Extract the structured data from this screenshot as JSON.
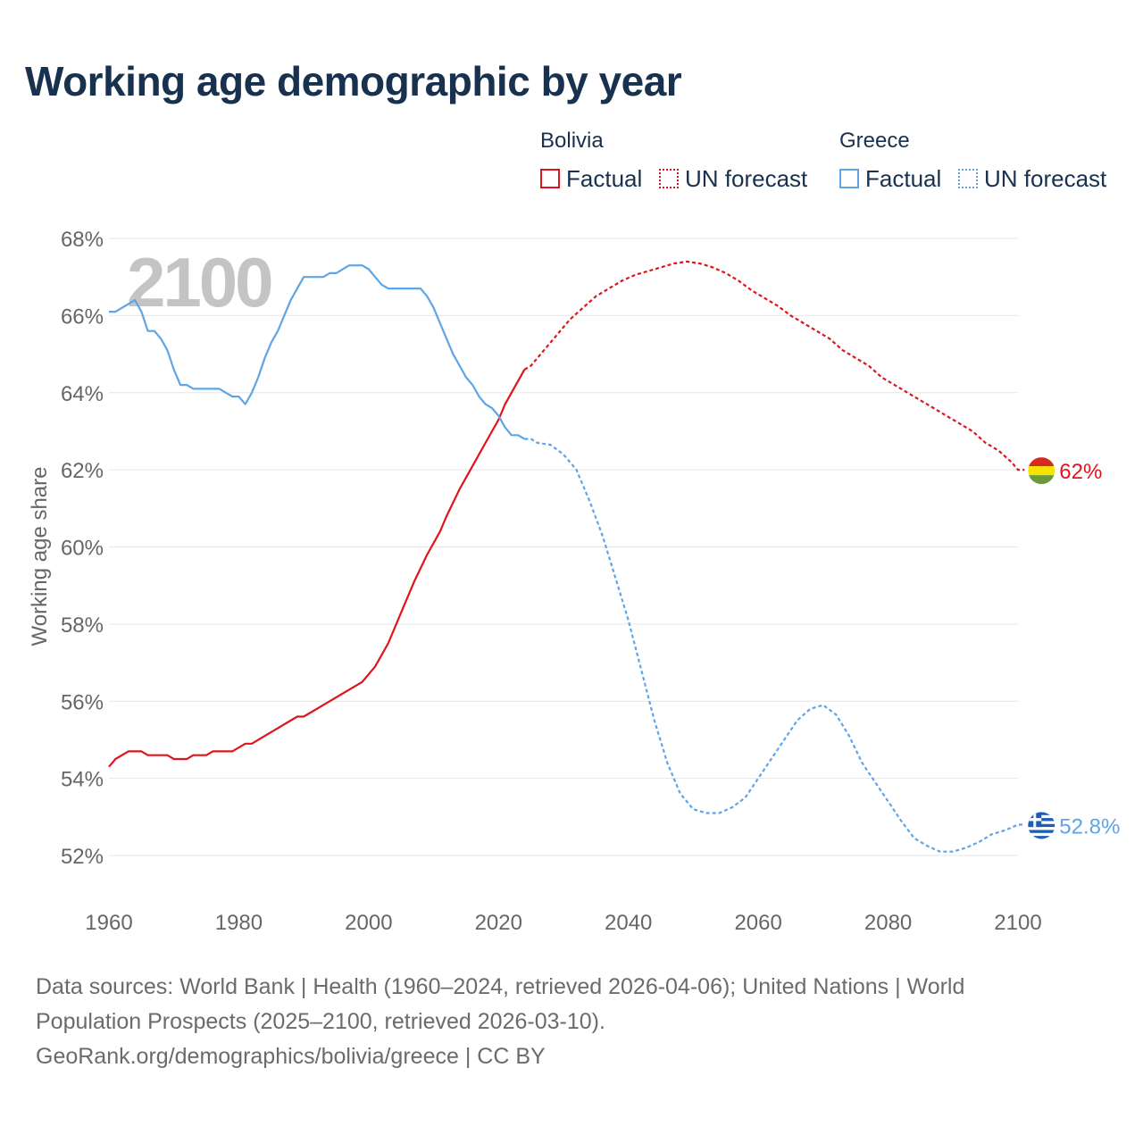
{
  "title": "Working age demographic by year",
  "legend": {
    "groups": [
      {
        "country": "Bolivia",
        "factual_label": "Factual",
        "forecast_label": "UN forecast",
        "color": "#e0141c"
      },
      {
        "country": "Greece",
        "factual_label": "Factual",
        "forecast_label": "UN forecast",
        "color": "#5ea5e6"
      }
    ]
  },
  "sources": {
    "line1": "Data sources: World Bank | Health (1960–2024, retrieved 2026-04-06); United Nations | World",
    "line2": "Population Prospects (2025–2100, retrieved 2026-03-10).",
    "line3": "GeoRank.org/demographics/bolivia/greece | CC BY"
  },
  "chart_data": {
    "type": "line",
    "title": "Working age demographic by year",
    "xlabel": "",
    "ylabel": "Working age share",
    "xlim": [
      1960,
      2100
    ],
    "ylim": [
      51,
      68
    ],
    "x_ticks": [
      1960,
      1980,
      2000,
      2020,
      2040,
      2060,
      2080,
      2100
    ],
    "y_ticks": [
      52,
      54,
      56,
      58,
      60,
      62,
      64,
      66,
      68
    ],
    "y_tick_labels": [
      "52%",
      "54%",
      "56%",
      "58%",
      "60%",
      "62%",
      "64%",
      "66%",
      "68%"
    ],
    "watermark_year": "2100",
    "factual_end_year": 2024,
    "series": [
      {
        "name": "Bolivia",
        "color": "#e0141c",
        "end_label": "62%",
        "points": [
          [
            1960,
            54.3
          ],
          [
            1961,
            54.5
          ],
          [
            1963,
            54.7
          ],
          [
            1965,
            54.7
          ],
          [
            1966,
            54.6
          ],
          [
            1969,
            54.6
          ],
          [
            1970,
            54.5
          ],
          [
            1972,
            54.5
          ],
          [
            1973,
            54.6
          ],
          [
            1975,
            54.6
          ],
          [
            1976,
            54.7
          ],
          [
            1979,
            54.7
          ],
          [
            1981,
            54.9
          ],
          [
            1982,
            54.9
          ],
          [
            1985,
            55.2
          ],
          [
            1989,
            55.6
          ],
          [
            1990,
            55.6
          ],
          [
            1994,
            56.0
          ],
          [
            1999,
            56.5
          ],
          [
            2001,
            56.9
          ],
          [
            2003,
            57.5
          ],
          [
            2005,
            58.3
          ],
          [
            2007,
            59.1
          ],
          [
            2009,
            59.8
          ],
          [
            2011,
            60.4
          ],
          [
            2012,
            60.8
          ],
          [
            2014,
            61.5
          ],
          [
            2016,
            62.1
          ],
          [
            2018,
            62.7
          ],
          [
            2020,
            63.3
          ],
          [
            2021,
            63.7
          ],
          [
            2023,
            64.3
          ],
          [
            2024,
            64.6
          ],
          [
            2025,
            64.7
          ],
          [
            2027,
            65.1
          ],
          [
            2029,
            65.5
          ],
          [
            2031,
            65.9
          ],
          [
            2033,
            66.2
          ],
          [
            2035,
            66.5
          ],
          [
            2037,
            66.7
          ],
          [
            2039,
            66.9
          ],
          [
            2041,
            67.05
          ],
          [
            2043,
            67.15
          ],
          [
            2045,
            67.25
          ],
          [
            2047,
            67.35
          ],
          [
            2049,
            67.4
          ],
          [
            2051,
            67.35
          ],
          [
            2053,
            67.25
          ],
          [
            2055,
            67.1
          ],
          [
            2057,
            66.9
          ],
          [
            2059,
            66.65
          ],
          [
            2061,
            66.45
          ],
          [
            2063,
            66.25
          ],
          [
            2065,
            66.0
          ],
          [
            2067,
            65.8
          ],
          [
            2069,
            65.6
          ],
          [
            2071,
            65.4
          ],
          [
            2073,
            65.1
          ],
          [
            2075,
            64.9
          ],
          [
            2077,
            64.7
          ],
          [
            2079,
            64.4
          ],
          [
            2081,
            64.2
          ],
          [
            2083,
            64.0
          ],
          [
            2085,
            63.8
          ],
          [
            2087,
            63.6
          ],
          [
            2089,
            63.4
          ],
          [
            2091,
            63.2
          ],
          [
            2093,
            63.0
          ],
          [
            2095,
            62.7
          ],
          [
            2097,
            62.5
          ],
          [
            2099,
            62.2
          ],
          [
            2100,
            62.0
          ],
          [
            2101,
            62.0
          ]
        ]
      },
      {
        "name": "Greece",
        "color": "#5ea5e6",
        "end_label": "52.8%",
        "points": [
          [
            1960,
            66.1
          ],
          [
            1961,
            66.1
          ],
          [
            1963,
            66.3
          ],
          [
            1964,
            66.4
          ],
          [
            1965,
            66.1
          ],
          [
            1966,
            65.6
          ],
          [
            1967,
            65.6
          ],
          [
            1968,
            65.4
          ],
          [
            1969,
            65.1
          ],
          [
            1970,
            64.6
          ],
          [
            1971,
            64.2
          ],
          [
            1972,
            64.2
          ],
          [
            1973,
            64.1
          ],
          [
            1977,
            64.1
          ],
          [
            1978,
            64.0
          ],
          [
            1979,
            63.9
          ],
          [
            1980,
            63.9
          ],
          [
            1981,
            63.7
          ],
          [
            1982,
            64.0
          ],
          [
            1983,
            64.4
          ],
          [
            1984,
            64.9
          ],
          [
            1985,
            65.3
          ],
          [
            1986,
            65.6
          ],
          [
            1987,
            66.0
          ],
          [
            1988,
            66.4
          ],
          [
            1989,
            66.7
          ],
          [
            1990,
            67.0
          ],
          [
            1993,
            67.0
          ],
          [
            1994,
            67.1
          ],
          [
            1995,
            67.1
          ],
          [
            1997,
            67.3
          ],
          [
            1999,
            67.3
          ],
          [
            2000,
            67.2
          ],
          [
            2001,
            67.0
          ],
          [
            2002,
            66.8
          ],
          [
            2003,
            66.7
          ],
          [
            2008,
            66.7
          ],
          [
            2009,
            66.5
          ],
          [
            2010,
            66.2
          ],
          [
            2011,
            65.8
          ],
          [
            2012,
            65.4
          ],
          [
            2013,
            65.0
          ],
          [
            2014,
            64.7
          ],
          [
            2015,
            64.4
          ],
          [
            2016,
            64.2
          ],
          [
            2017,
            63.9
          ],
          [
            2018,
            63.7
          ],
          [
            2019,
            63.6
          ],
          [
            2020,
            63.4
          ],
          [
            2021,
            63.1
          ],
          [
            2022,
            62.9
          ],
          [
            2023,
            62.9
          ],
          [
            2024,
            62.8
          ],
          [
            2025,
            62.8
          ],
          [
            2026,
            62.7
          ],
          [
            2028,
            62.65
          ],
          [
            2030,
            62.4
          ],
          [
            2032,
            62.0
          ],
          [
            2034,
            61.2
          ],
          [
            2036,
            60.3
          ],
          [
            2038,
            59.2
          ],
          [
            2040,
            58.1
          ],
          [
            2042,
            56.8
          ],
          [
            2044,
            55.5
          ],
          [
            2046,
            54.4
          ],
          [
            2048,
            53.6
          ],
          [
            2050,
            53.2
          ],
          [
            2052,
            53.1
          ],
          [
            2054,
            53.1
          ],
          [
            2056,
            53.25
          ],
          [
            2058,
            53.5
          ],
          [
            2060,
            54.0
          ],
          [
            2062,
            54.5
          ],
          [
            2064,
            55.0
          ],
          [
            2066,
            55.5
          ],
          [
            2068,
            55.8
          ],
          [
            2070,
            55.9
          ],
          [
            2072,
            55.65
          ],
          [
            2074,
            55.1
          ],
          [
            2076,
            54.4
          ],
          [
            2078,
            53.9
          ],
          [
            2080,
            53.4
          ],
          [
            2082,
            52.9
          ],
          [
            2084,
            52.45
          ],
          [
            2086,
            52.25
          ],
          [
            2088,
            52.1
          ],
          [
            2090,
            52.1
          ],
          [
            2092,
            52.2
          ],
          [
            2094,
            52.35
          ],
          [
            2096,
            52.55
          ],
          [
            2098,
            52.65
          ],
          [
            2100,
            52.8
          ],
          [
            2101,
            52.8
          ]
        ]
      }
    ]
  }
}
